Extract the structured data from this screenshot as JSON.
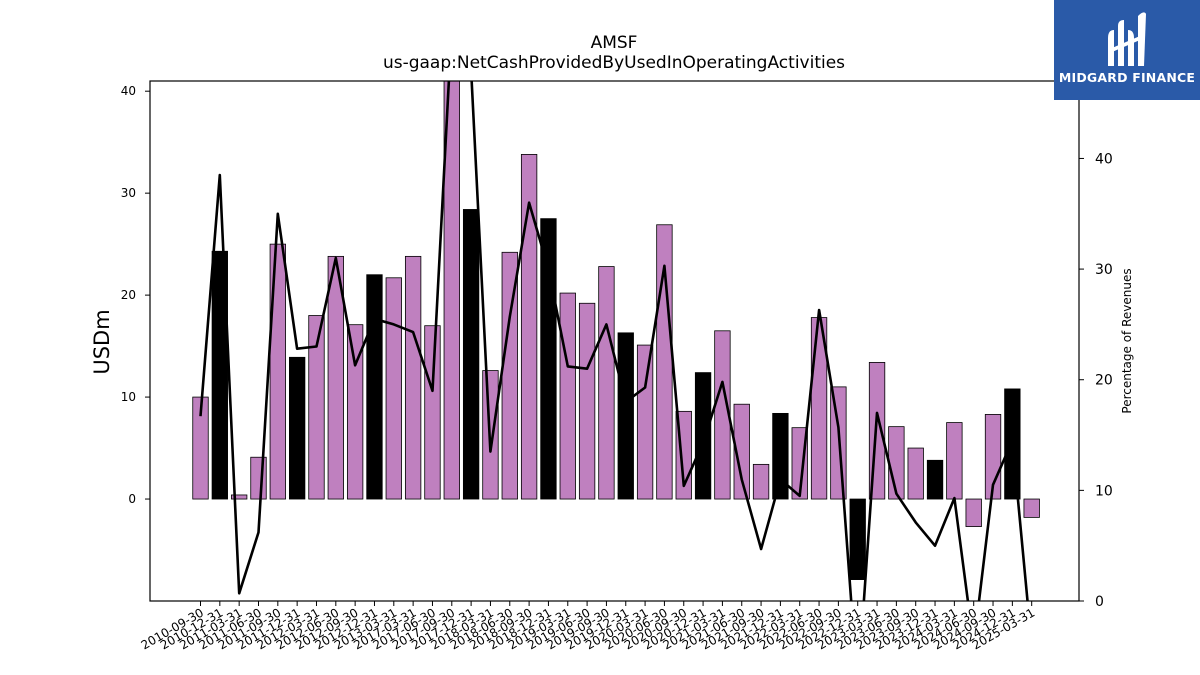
{
  "chart_data": {
    "type": "bar",
    "title": "AMSF",
    "subtitle": "us-gaap:NetCashProvidedByUsedInOperatingActivities",
    "ylabel": "USDm",
    "ylabel_right": "Percentage of Revenues",
    "ylim": [
      -10,
      41
    ],
    "ylim_right": [
      0,
      47
    ],
    "yticks": [
      0,
      10,
      20,
      30,
      40
    ],
    "yticks_right": [
      0,
      10,
      20,
      30,
      40
    ],
    "categories": [
      "2010-09-30",
      "2010-12-31",
      "2011-03-31",
      "2011-06-30",
      "2011-09-30",
      "2011-12-31",
      "2012-03-31",
      "2012-06-30",
      "2012-09-30",
      "2012-12-31",
      "2013-03-31",
      "2017-03-31",
      "2017-06-30",
      "2017-09-30",
      "2017-12-31",
      "2018-03-31",
      "2018-06-30",
      "2018-09-30",
      "2018-12-31",
      "2019-03-31",
      "2019-06-30",
      "2019-09-30",
      "2019-12-31",
      "2020-03-31",
      "2020-06-30",
      "2020-09-30",
      "2020-12-31",
      "2021-03-31",
      "2021-06-30",
      "2021-09-30",
      "2021-12-31",
      "2022-03-31",
      "2022-06-30",
      "2022-09-30",
      "2022-12-31",
      "2023-03-31",
      "2023-06-30",
      "2023-09-30",
      "2023-12-31",
      "2024-03-31",
      "2024-06-30",
      "2024-09-30",
      "2024-12-31",
      "2025-03-31"
    ],
    "series": [
      {
        "kind": "bar",
        "values": [
          10.0,
          24.3,
          0.4,
          4.1,
          25.0,
          13.9,
          18.0,
          23.8,
          17.1,
          22.0,
          21.7,
          23.8,
          17.0,
          43.0,
          28.4,
          12.6,
          24.2,
          33.8,
          27.5,
          20.2,
          19.2,
          22.8,
          16.3,
          15.1,
          26.9,
          8.6,
          12.4,
          16.5,
          9.3,
          3.4,
          8.4,
          7.0,
          17.8,
          11.0,
          -7.9,
          13.4,
          7.1,
          5.0,
          3.8,
          7.5,
          -2.7,
          8.3,
          10.8,
          -1.8
        ],
        "q4_highlight": [
          false,
          true,
          false,
          false,
          false,
          true,
          false,
          false,
          false,
          true,
          false,
          false,
          false,
          false,
          true,
          false,
          false,
          false,
          true,
          false,
          false,
          false,
          true,
          false,
          false,
          false,
          true,
          false,
          false,
          false,
          true,
          false,
          false,
          false,
          true,
          false,
          false,
          false,
          true,
          false,
          false,
          false,
          true,
          false
        ],
        "colors": {
          "regular": "#bf80bf",
          "highlight": "#000000",
          "edge": "#000000"
        }
      },
      {
        "kind": "line",
        "axis": "right",
        "values": [
          16.7,
          38.5,
          0.7,
          6.2,
          35.0,
          22.8,
          23.0,
          31.0,
          21.3,
          25.5,
          25.0,
          24.3,
          19.0,
          52.0,
          48.0,
          13.5,
          25.7,
          36.0,
          30.0,
          21.2,
          21.0,
          25.0,
          18.0,
          19.3,
          30.3,
          10.4,
          14.3,
          19.8,
          11.0,
          4.7,
          11.0,
          9.5,
          26.3,
          15.7,
          -8.0,
          17.0,
          9.7,
          7.1,
          5.0,
          9.3,
          -4.0,
          10.5,
          14.5,
          -4.0
        ],
        "color": "#000000"
      }
    ]
  },
  "logo": {
    "text": "MIDGARD FINANCE"
  }
}
